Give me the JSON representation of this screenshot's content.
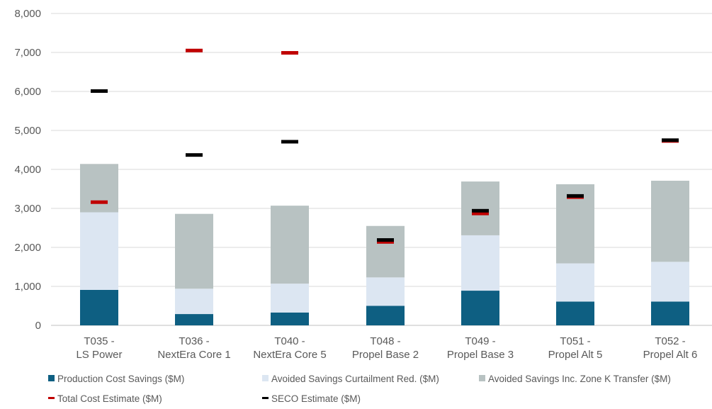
{
  "chart_data": {
    "type": "bar",
    "stacked": true,
    "categories": [
      [
        "T035 -",
        "LS Power"
      ],
      [
        "T036 -",
        "NextEra Core 1"
      ],
      [
        "T040 -",
        "NextEra Core 5"
      ],
      [
        "T048 -",
        "Propel Base 2"
      ],
      [
        "T049 -",
        "Propel Base 3"
      ],
      [
        "T051 -",
        "Propel Alt 5"
      ],
      [
        "T052 -",
        "Propel Alt 6"
      ]
    ],
    "series": [
      {
        "name": "Production Cost Savings ($M)",
        "kind": "bar",
        "color": "#0e5f82",
        "values": [
          910,
          290,
          330,
          500,
          890,
          610,
          610
        ]
      },
      {
        "name": "Avoided Savings Curtailment Red. ($M)",
        "kind": "bar",
        "color": "#dce6f2",
        "values": [
          1990,
          650,
          740,
          730,
          1420,
          980,
          1020
        ]
      },
      {
        "name": "Avoided Savings Inc. Zone K Transfer ($M)",
        "kind": "bar",
        "color": "#b8c2c2",
        "values": [
          1240,
          1920,
          2000,
          1320,
          1380,
          2030,
          2080
        ]
      },
      {
        "name": "Total Cost Estimate ($M)",
        "kind": "marker",
        "color": "#c00000",
        "values": [
          3160,
          7050,
          6990,
          2140,
          2870,
          3290,
          4730
        ]
      },
      {
        "name": "SECO Estimate ($M)",
        "kind": "marker",
        "color": "#000000",
        "values": [
          6010,
          4370,
          4710,
          2190,
          2940,
          3320,
          4750
        ]
      }
    ],
    "yticks": [
      "0",
      "1,000",
      "2,000",
      "3,000",
      "4,000",
      "5,000",
      "6,000",
      "7,000",
      "8,000"
    ],
    "ylim": [
      0,
      8000
    ],
    "grid": true,
    "legend_position": "bottom",
    "title": "",
    "xlabel": "",
    "ylabel": ""
  }
}
